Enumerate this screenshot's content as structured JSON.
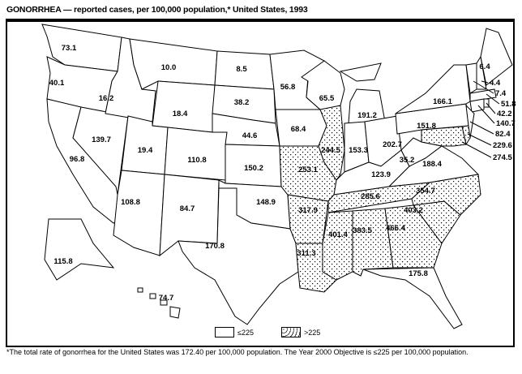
{
  "title": "GONORRHEA — reported cases, per 100,000 population,* United States, 1993",
  "legend": [
    {
      "label": "≤225",
      "pattern": "none"
    },
    {
      "label": ">225",
      "pattern": "dots"
    }
  ],
  "footnote": "*The total rate of gonorrhea for the United States was 172.40 per 100,000 population. The Year 2000 Objective is ≤225 per 100,000 population.",
  "threshold": 225,
  "states": [
    {
      "state": "WA",
      "value": "73.1"
    },
    {
      "state": "OR",
      "value": "40.1"
    },
    {
      "state": "CA",
      "value": "96.8"
    },
    {
      "state": "NV",
      "value": "139.7"
    },
    {
      "state": "ID",
      "value": "16.2"
    },
    {
      "state": "MT",
      "value": "10.0"
    },
    {
      "state": "WY",
      "value": "18.4"
    },
    {
      "state": "UT",
      "value": "19.4"
    },
    {
      "state": "CO",
      "value": "110.8"
    },
    {
      "state": "AZ",
      "value": "108.8"
    },
    {
      "state": "NM",
      "value": "84.7"
    },
    {
      "state": "ND",
      "value": "8.5"
    },
    {
      "state": "SD",
      "value": "38.2"
    },
    {
      "state": "NE",
      "value": "44.6"
    },
    {
      "state": "KS",
      "value": "150.2"
    },
    {
      "state": "OK",
      "value": "148.9"
    },
    {
      "state": "TX",
      "value": "170.8"
    },
    {
      "state": "MN",
      "value": "56.8"
    },
    {
      "state": "IA",
      "value": "68.4"
    },
    {
      "state": "MO",
      "value": "253.1"
    },
    {
      "state": "AR",
      "value": "317.9"
    },
    {
      "state": "LA",
      "value": "311.3"
    },
    {
      "state": "WI",
      "value": "65.5"
    },
    {
      "state": "IL",
      "value": "244.5"
    },
    {
      "state": "MI",
      "value": "191.2"
    },
    {
      "state": "IN",
      "value": "153.3"
    },
    {
      "state": "OH",
      "value": "202.7"
    },
    {
      "state": "KY",
      "value": "123.9"
    },
    {
      "state": "WV",
      "value": "35.2"
    },
    {
      "state": "VA",
      "value": "188.4"
    },
    {
      "state": "TN",
      "value": "285.6"
    },
    {
      "state": "MS",
      "value": "401.4"
    },
    {
      "state": "AL",
      "value": "383.5"
    },
    {
      "state": "GA",
      "value": "466.4"
    },
    {
      "state": "SC",
      "value": "403.2"
    },
    {
      "state": "NC",
      "value": "354.7"
    },
    {
      "state": "FL",
      "value": "175.8"
    },
    {
      "state": "PA",
      "value": "151.8"
    },
    {
      "state": "NY",
      "value": "166.1"
    },
    {
      "state": "ME",
      "value": "6.4"
    },
    {
      "state": "NH",
      "value": "4.4"
    },
    {
      "state": "VT",
      "value": "7.4"
    },
    {
      "state": "MA",
      "value": "51.8"
    },
    {
      "state": "RI",
      "value": "42.2"
    },
    {
      "state": "CT",
      "value": "140.7"
    },
    {
      "state": "NJ",
      "value": "82.4"
    },
    {
      "state": "DE",
      "value": "229.6"
    },
    {
      "state": "MD",
      "value": "274.5"
    },
    {
      "state": "AK",
      "value": "115.8"
    },
    {
      "state": "HI",
      "value": "74.7"
    }
  ]
}
